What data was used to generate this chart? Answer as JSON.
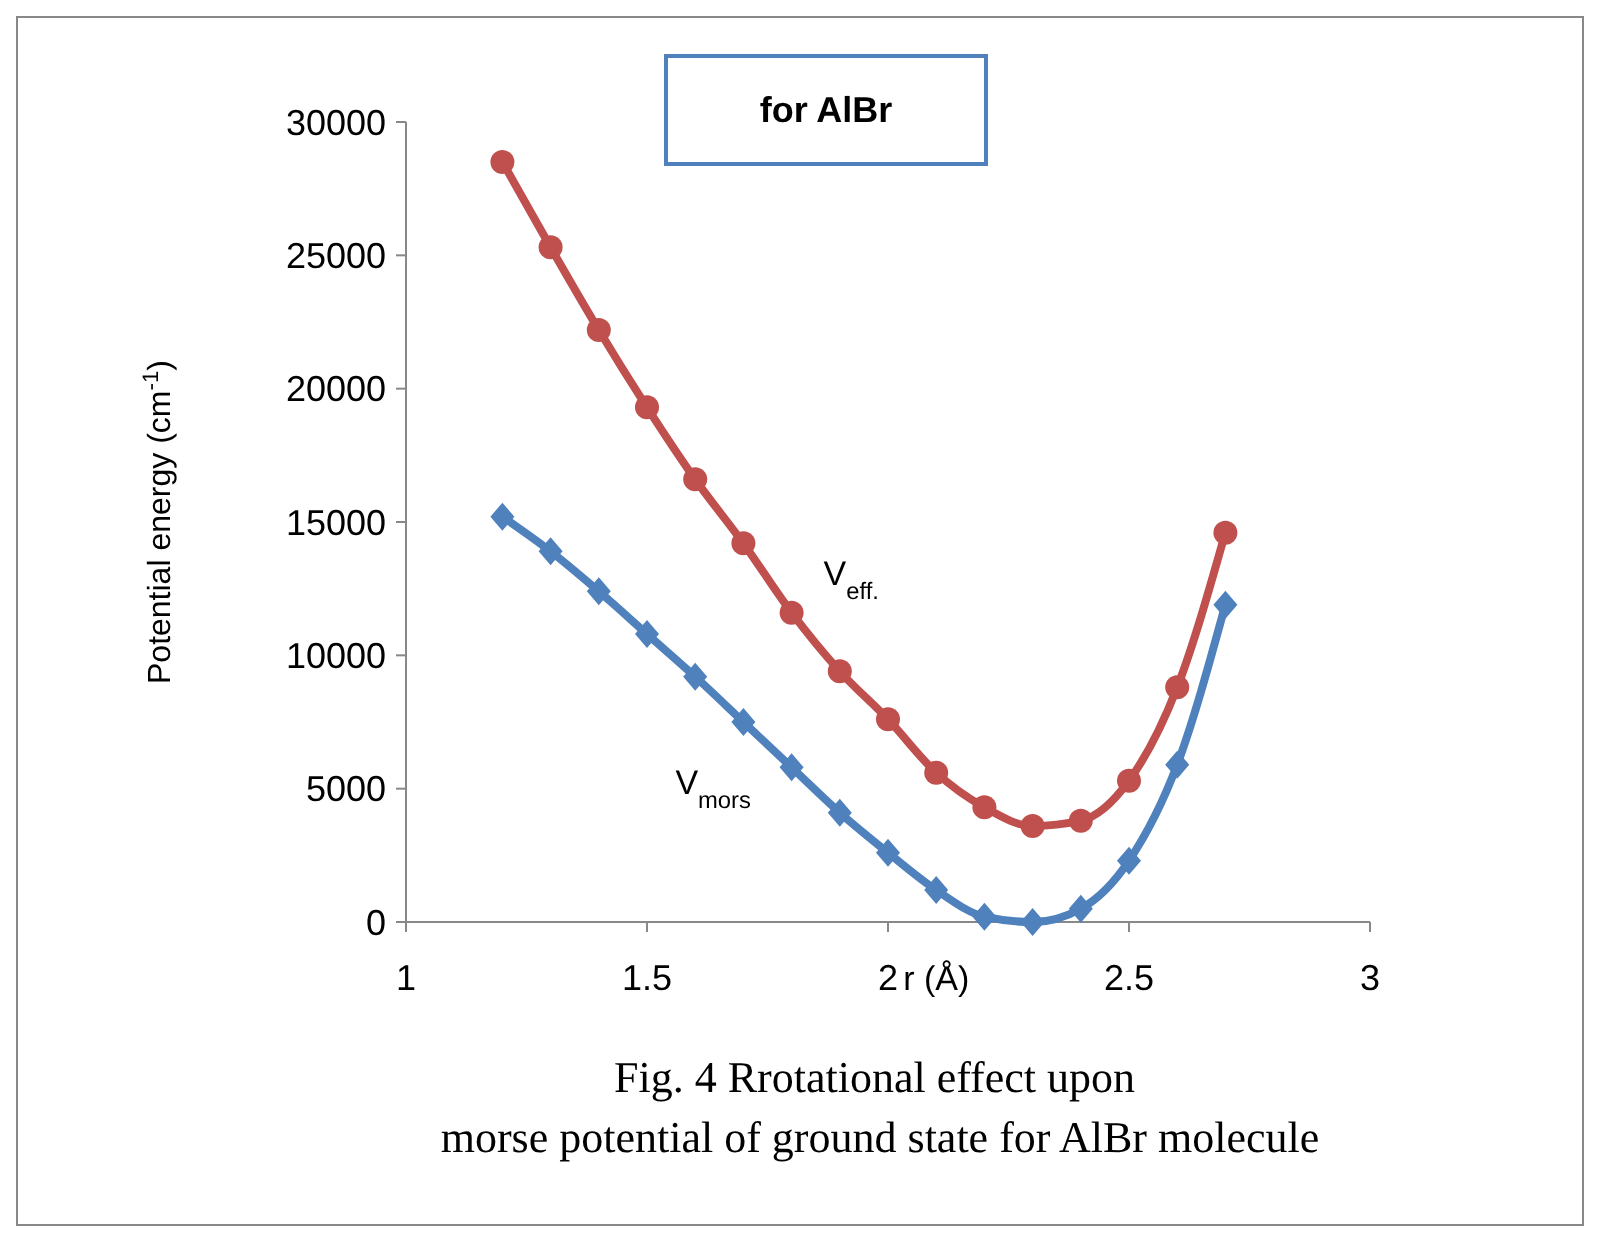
{
  "chart_data": {
    "type": "line",
    "title": "for AlBr",
    "xlabel": "r (Å)",
    "ylabel": "Potential energy (cm$^{-1}$)",
    "x": [
      1.2,
      1.3,
      1.4,
      1.5,
      1.6,
      1.7,
      1.8,
      1.9,
      2.0,
      2.1,
      2.2,
      2.3,
      2.4,
      2.5,
      2.6,
      2.7
    ],
    "series": [
      {
        "name": "V$_{eff.}$",
        "color": "#c0504d",
        "marker": "circle",
        "values": [
          28500,
          25300,
          22200,
          19300,
          16600,
          14200,
          11600,
          9400,
          7600,
          5600,
          4300,
          3600,
          3800,
          5300,
          8800,
          14600
        ]
      },
      {
        "name": "V$_{mors}$",
        "color": "#4f81bd",
        "marker": "diamond",
        "values": [
          15200,
          13900,
          12400,
          10800,
          9200,
          7500,
          5800,
          4100,
          2600,
          1200,
          200,
          0,
          500,
          2300,
          5900,
          11900
        ]
      }
    ],
    "xlim": [
      1,
      3
    ],
    "xticks": [
      1,
      1.5,
      2,
      2.5,
      3
    ],
    "ylim": [
      0,
      30000
    ],
    "yticks": [
      0,
      5000,
      10000,
      15000,
      20000,
      25000,
      30000
    ],
    "grid": false,
    "line_style": "solid",
    "annotations": [
      "Fig. 4 Rrotational effect upon  morse potential of ground state for AlBr molecule"
    ]
  }
}
